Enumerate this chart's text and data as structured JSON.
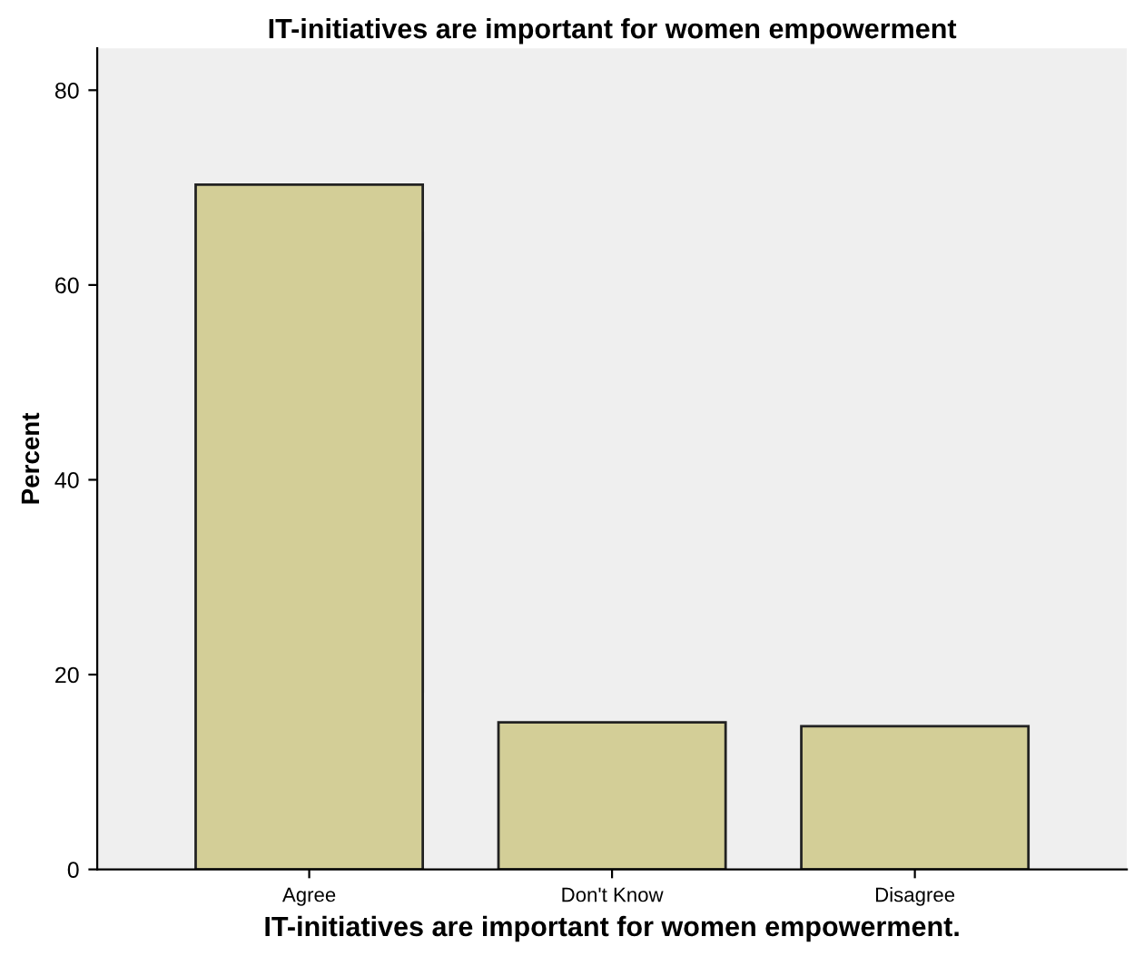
{
  "chart_data": {
    "type": "bar",
    "title": "IT-initiatives are important for women empowerment",
    "xlabel": "IT-initiatives are important for women empowerment.",
    "ylabel": "Percent",
    "categories": [
      "Agree",
      "Don't Know",
      "Disagree"
    ],
    "values": [
      70.3,
      15.1,
      14.7
    ],
    "color": "#d3ce97",
    "ylim": [
      0,
      84.3
    ],
    "yticks": [
      0,
      20,
      40,
      60,
      80
    ],
    "grid": false,
    "legend": false
  }
}
